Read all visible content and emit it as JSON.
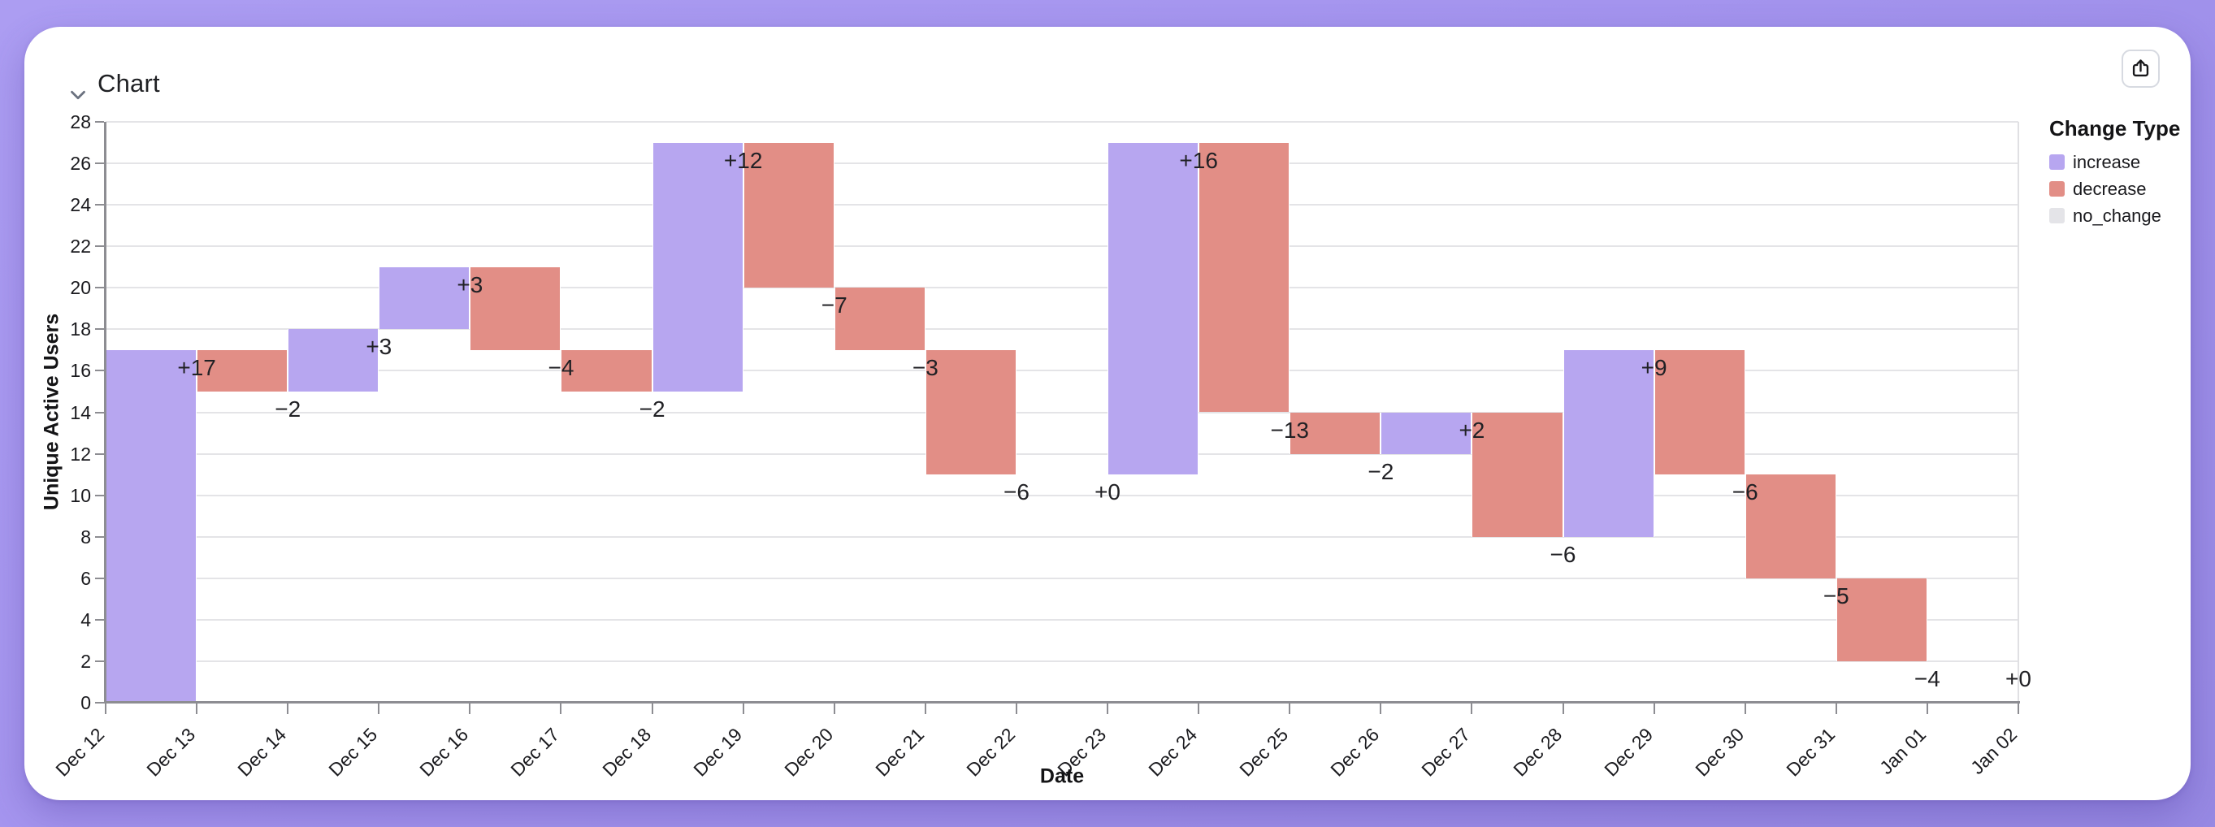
{
  "header": {
    "title": "Chart"
  },
  "icons": {
    "collapse": "chevron-down-icon",
    "share": "share-icon"
  },
  "legend": {
    "title": "Change Type",
    "items": [
      {
        "key": "increase",
        "label": "increase",
        "color": "#b7a6f0"
      },
      {
        "key": "decrease",
        "label": "decrease",
        "color": "#e28e86"
      },
      {
        "key": "no_change",
        "label": "no_change",
        "color": "#e4e4e8"
      }
    ]
  },
  "chart_data": {
    "type": "bar",
    "subtype": "waterfall",
    "title": "",
    "xlabel": "Date",
    "ylabel": "Unique Active Users",
    "ylim": [
      0,
      28
    ],
    "ytick_step": 2,
    "y_ticks": [
      0,
      2,
      4,
      6,
      8,
      10,
      12,
      14,
      16,
      18,
      20,
      22,
      24,
      26,
      28
    ],
    "x_ticks": [
      "Dec 12",
      "Dec 13",
      "Dec 14",
      "Dec 15",
      "Dec 16",
      "Dec 17",
      "Dec 18",
      "Dec 19",
      "Dec 20",
      "Dec 21",
      "Dec 22",
      "Dec 23",
      "Dec 24",
      "Dec 25",
      "Dec 26",
      "Dec 27",
      "Dec 28",
      "Dec 29",
      "Dec 30",
      "Dec 31",
      "Jan 01",
      "Jan 02"
    ],
    "grid": "horizontal",
    "legend_position": "top-right",
    "points": [
      {
        "date": "Dec 12",
        "change": 17,
        "label": "+17",
        "start": 0,
        "end": 17,
        "type": "increase"
      },
      {
        "date": "Dec 13",
        "change": -2,
        "label": "−2",
        "start": 17,
        "end": 15,
        "type": "decrease"
      },
      {
        "date": "Dec 14",
        "change": 3,
        "label": "+3",
        "start": 15,
        "end": 18,
        "type": "increase"
      },
      {
        "date": "Dec 15",
        "change": 3,
        "label": "+3",
        "start": 18,
        "end": 21,
        "type": "increase"
      },
      {
        "date": "Dec 16",
        "change": -4,
        "label": "−4",
        "start": 21,
        "end": 17,
        "type": "decrease"
      },
      {
        "date": "Dec 17",
        "change": -2,
        "label": "−2",
        "start": 17,
        "end": 15,
        "type": "decrease"
      },
      {
        "date": "Dec 18",
        "change": 12,
        "label": "+12",
        "start": 15,
        "end": 27,
        "type": "increase"
      },
      {
        "date": "Dec 19",
        "change": -7,
        "label": "−7",
        "start": 27,
        "end": 20,
        "type": "decrease"
      },
      {
        "date": "Dec 20",
        "change": -3,
        "label": "−3",
        "start": 20,
        "end": 17,
        "type": "decrease"
      },
      {
        "date": "Dec 21",
        "change": -6,
        "label": "−6",
        "start": 17,
        "end": 11,
        "type": "decrease"
      },
      {
        "date": "Dec 22",
        "change": 0,
        "label": "+0",
        "start": 11,
        "end": 11,
        "type": "no_change"
      },
      {
        "date": "Dec 23",
        "change": 16,
        "label": "+16",
        "start": 11,
        "end": 27,
        "type": "increase"
      },
      {
        "date": "Dec 24",
        "change": -13,
        "label": "−13",
        "start": 27,
        "end": 14,
        "type": "decrease"
      },
      {
        "date": "Dec 25",
        "change": -2,
        "label": "−2",
        "start": 14,
        "end": 12,
        "type": "decrease"
      },
      {
        "date": "Dec 26",
        "change": 2,
        "label": "+2",
        "start": 12,
        "end": 14,
        "type": "increase"
      },
      {
        "date": "Dec 27",
        "change": -6,
        "label": "−6",
        "start": 14,
        "end": 8,
        "type": "decrease"
      },
      {
        "date": "Dec 28",
        "change": 9,
        "label": "+9",
        "start": 8,
        "end": 17,
        "type": "increase"
      },
      {
        "date": "Dec 29",
        "change": -6,
        "label": "−6",
        "start": 17,
        "end": 11,
        "type": "decrease"
      },
      {
        "date": "Dec 30",
        "change": -5,
        "label": "−5",
        "start": 11,
        "end": 6,
        "type": "decrease"
      },
      {
        "date": "Dec 31",
        "change": -4,
        "label": "−4",
        "start": 6,
        "end": 2,
        "type": "decrease"
      },
      {
        "date": "Jan 01",
        "change": 0,
        "label": "+0",
        "start": 2,
        "end": 2,
        "type": "no_change"
      }
    ]
  },
  "colors": {
    "background": "#a494ee",
    "card": "#ffffff",
    "gridline": "#e4e4e7",
    "axis": "#8d8d92",
    "label_text": "#212125"
  }
}
